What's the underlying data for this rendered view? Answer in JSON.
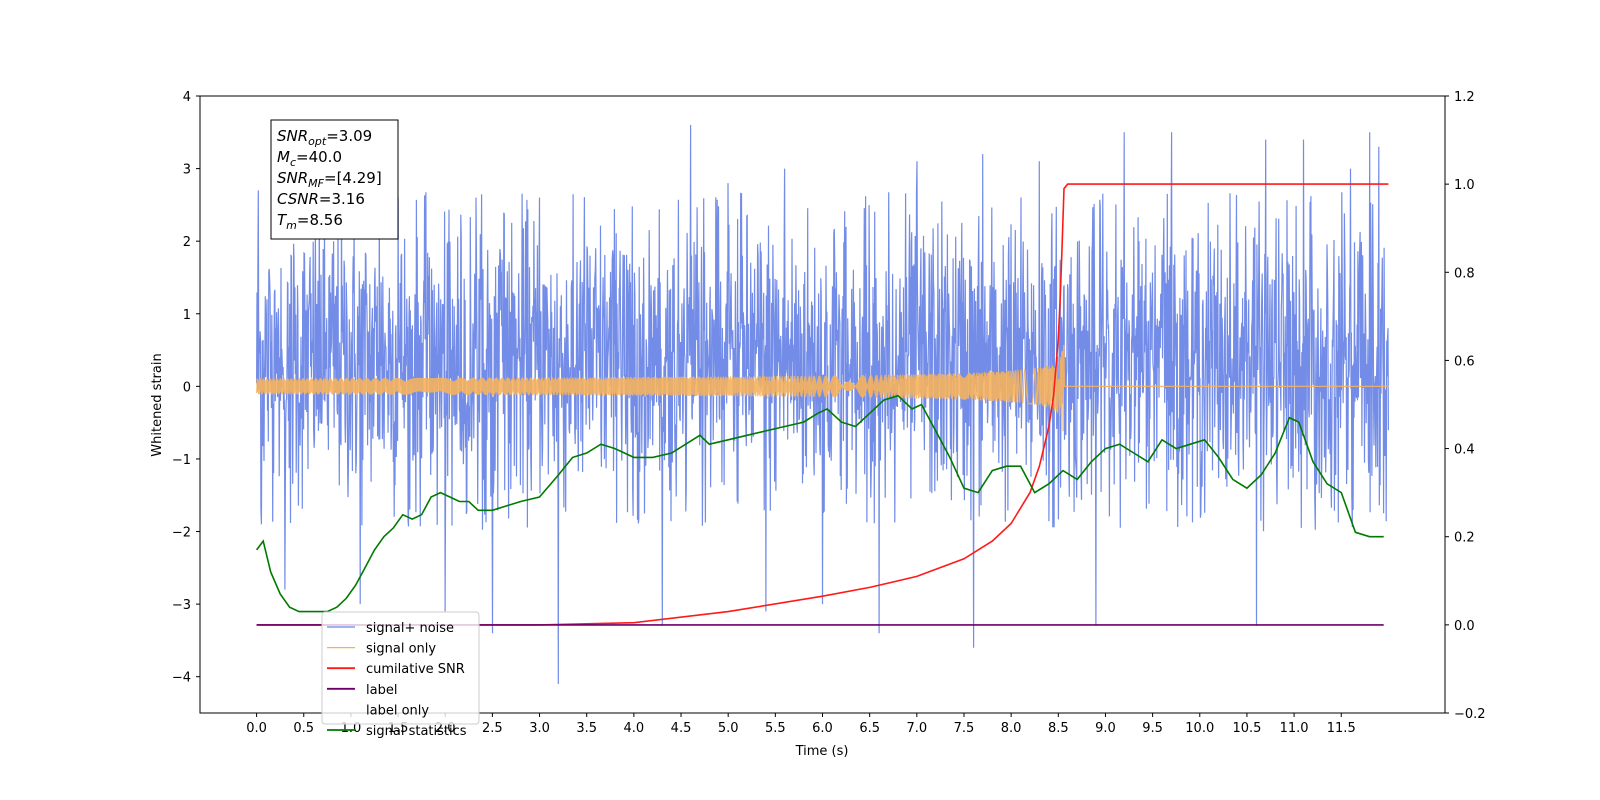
{
  "chart_data": {
    "type": "line",
    "xlabel": "Time (s)",
    "ylabel_left": "Whitened strain",
    "ylabel_right": "",
    "xlim": [
      -0.6,
      12.6
    ],
    "ylim_left": [
      -4.5,
      4.0
    ],
    "ylim_right": [
      -0.2,
      1.2
    ],
    "x_ticks": [
      0.0,
      0.5,
      1.0,
      1.5,
      2.0,
      2.5,
      3.0,
      3.5,
      4.0,
      4.5,
      5.0,
      5.5,
      6.0,
      6.5,
      7.0,
      7.5,
      8.0,
      8.5,
      9.0,
      9.5,
      10.0,
      10.5,
      11.0,
      11.5
    ],
    "x_tick_labels": [
      "0.0",
      "0.5",
      "1.0",
      "1.5",
      "2.0",
      "2.5",
      "3.0",
      "3.5",
      "4.0",
      "4.5",
      "5.0",
      "5.5",
      "6.0",
      "6.5",
      "7.0",
      "7.5",
      "8.0",
      "8.5",
      "9.0",
      "9.5",
      "10.0",
      "10.5",
      "11.0",
      "11.5"
    ],
    "y_left_ticks": [
      4,
      3,
      2,
      1,
      0,
      -1,
      -2,
      -3,
      -4
    ],
    "y_left_tick_labels": [
      "4",
      "3",
      "2",
      "1",
      "0",
      "−1",
      "−2",
      "−3",
      "−4"
    ],
    "y_right_ticks": [
      1.2,
      1.0,
      0.8,
      0.6,
      0.4,
      0.2,
      0.0,
      -0.2
    ],
    "y_right_tick_labels": [
      "1.2",
      "1.0",
      "0.8",
      "0.6",
      "0.4",
      "0.2",
      "0.0",
      "−0.2"
    ],
    "grid": false,
    "legend_position": "lower-left",
    "series": [
      {
        "name": "signal+ noise",
        "axis": "left",
        "color": "#6a86e6",
        "style": "noise",
        "x_range": [
          0.0,
          12.0
        ],
        "baseline": 0.0,
        "typical_band": [
          -2.0,
          2.7
        ],
        "peaks": [
          {
            "x": 0.02,
            "y": 2.7
          },
          {
            "x": 0.05,
            "y": -1.9
          },
          {
            "x": 0.3,
            "y": -2.8
          },
          {
            "x": 1.1,
            "y": -3.0
          },
          {
            "x": 1.3,
            "y": 2.6
          },
          {
            "x": 1.5,
            "y": 2.6
          },
          {
            "x": 2.0,
            "y": -3.1
          },
          {
            "x": 2.5,
            "y": -3.4
          },
          {
            "x": 3.0,
            "y": 2.6
          },
          {
            "x": 3.2,
            "y": -4.1
          },
          {
            "x": 4.3,
            "y": -3.3
          },
          {
            "x": 4.6,
            "y": 3.6
          },
          {
            "x": 5.0,
            "y": 2.8
          },
          {
            "x": 5.4,
            "y": -3.1
          },
          {
            "x": 5.6,
            "y": 3.0
          },
          {
            "x": 6.0,
            "y": -3.0
          },
          {
            "x": 6.6,
            "y": -3.4
          },
          {
            "x": 7.0,
            "y": 3.1
          },
          {
            "x": 7.6,
            "y": -3.6
          },
          {
            "x": 7.7,
            "y": 3.2
          },
          {
            "x": 8.3,
            "y": 3.1
          },
          {
            "x": 8.9,
            "y": -3.3
          },
          {
            "x": 9.2,
            "y": 3.5
          },
          {
            "x": 9.7,
            "y": 3.5
          },
          {
            "x": 10.6,
            "y": -3.3
          },
          {
            "x": 10.7,
            "y": 3.4
          },
          {
            "x": 11.1,
            "y": 3.4
          },
          {
            "x": 11.6,
            "y": 3.0
          },
          {
            "x": 11.8,
            "y": 3.5
          },
          {
            "x": 11.9,
            "y": 3.3
          }
        ]
      },
      {
        "name": "signal only",
        "axis": "left",
        "color": "#f5b15e",
        "style": "chirp",
        "x_range": [
          0.0,
          12.0
        ],
        "t_merger": 8.56,
        "peak_amplitude": 0.75
      },
      {
        "name": "cumilative SNR",
        "axis": "right",
        "color": "#ff1a1a",
        "style": "line",
        "x": [
          0.0,
          0.5,
          1.0,
          2.0,
          3.0,
          4.0,
          5.0,
          6.0,
          6.5,
          7.0,
          7.5,
          7.8,
          8.0,
          8.2,
          8.3,
          8.4,
          8.45,
          8.5,
          8.52,
          8.54,
          8.56,
          8.6,
          9.0,
          10.0,
          11.0,
          12.0
        ],
        "y": [
          0.0,
          0.0,
          0.0,
          0.0,
          0.0,
          0.005,
          0.03,
          0.065,
          0.085,
          0.11,
          0.15,
          0.19,
          0.23,
          0.3,
          0.36,
          0.45,
          0.52,
          0.65,
          0.74,
          0.86,
          0.99,
          1.0,
          1.0,
          1.0,
          1.0,
          1.0
        ]
      },
      {
        "name": "label",
        "axis": "right",
        "color": "#6b006b",
        "style": "line",
        "x": [
          0.0,
          11.95
        ],
        "y": [
          0.0,
          0.0
        ]
      },
      {
        "name": "label only",
        "axis": "right",
        "color": "#ffffff",
        "style": "hidden",
        "x": [],
        "y": []
      },
      {
        "name": "signal statistics",
        "axis": "right",
        "color": "#007a00",
        "style": "line",
        "x": [
          0.0,
          0.07,
          0.15,
          0.25,
          0.35,
          0.45,
          0.55,
          0.65,
          0.75,
          0.85,
          0.95,
          1.05,
          1.15,
          1.25,
          1.35,
          1.45,
          1.55,
          1.65,
          1.75,
          1.85,
          1.95,
          2.05,
          2.15,
          2.25,
          2.35,
          2.5,
          2.65,
          2.8,
          3.0,
          3.2,
          3.35,
          3.5,
          3.65,
          3.8,
          4.0,
          4.2,
          4.4,
          4.55,
          4.7,
          4.8,
          5.0,
          5.2,
          5.4,
          5.6,
          5.8,
          5.95,
          6.05,
          6.2,
          6.35,
          6.5,
          6.65,
          6.8,
          6.95,
          7.05,
          7.2,
          7.35,
          7.5,
          7.65,
          7.8,
          7.95,
          8.1,
          8.25,
          8.4,
          8.55,
          8.7,
          8.85,
          9.0,
          9.15,
          9.3,
          9.45,
          9.6,
          9.75,
          9.9,
          10.05,
          10.2,
          10.35,
          10.5,
          10.65,
          10.8,
          10.95,
          11.05,
          11.2,
          11.35,
          11.5,
          11.65,
          11.8,
          11.95
        ],
        "y": [
          0.17,
          0.19,
          0.12,
          0.07,
          0.04,
          0.03,
          0.03,
          0.03,
          0.03,
          0.04,
          0.06,
          0.09,
          0.13,
          0.17,
          0.2,
          0.22,
          0.25,
          0.24,
          0.25,
          0.29,
          0.3,
          0.29,
          0.28,
          0.28,
          0.26,
          0.26,
          0.27,
          0.28,
          0.29,
          0.34,
          0.38,
          0.39,
          0.41,
          0.4,
          0.38,
          0.38,
          0.39,
          0.41,
          0.43,
          0.41,
          0.42,
          0.43,
          0.44,
          0.45,
          0.46,
          0.48,
          0.49,
          0.46,
          0.45,
          0.48,
          0.51,
          0.52,
          0.49,
          0.5,
          0.44,
          0.38,
          0.31,
          0.3,
          0.35,
          0.36,
          0.36,
          0.3,
          0.32,
          0.35,
          0.33,
          0.37,
          0.4,
          0.41,
          0.39,
          0.37,
          0.42,
          0.4,
          0.41,
          0.42,
          0.38,
          0.33,
          0.31,
          0.34,
          0.39,
          0.47,
          0.46,
          0.37,
          0.32,
          0.3,
          0.21,
          0.2,
          0.2
        ]
      }
    ],
    "annotation": {
      "lines": [
        {
          "var": "SNR",
          "sub": "opt",
          "value": "=3.09"
        },
        {
          "var": "M",
          "sub": "c",
          "value": "=40.0"
        },
        {
          "var": "SNR",
          "sub": "MF",
          "value": "=[4.29]"
        },
        {
          "var": "CSNR",
          "sub": "",
          "value": "=3.16"
        },
        {
          "var": "T",
          "sub": "m",
          "value": "=8.56"
        }
      ]
    }
  }
}
